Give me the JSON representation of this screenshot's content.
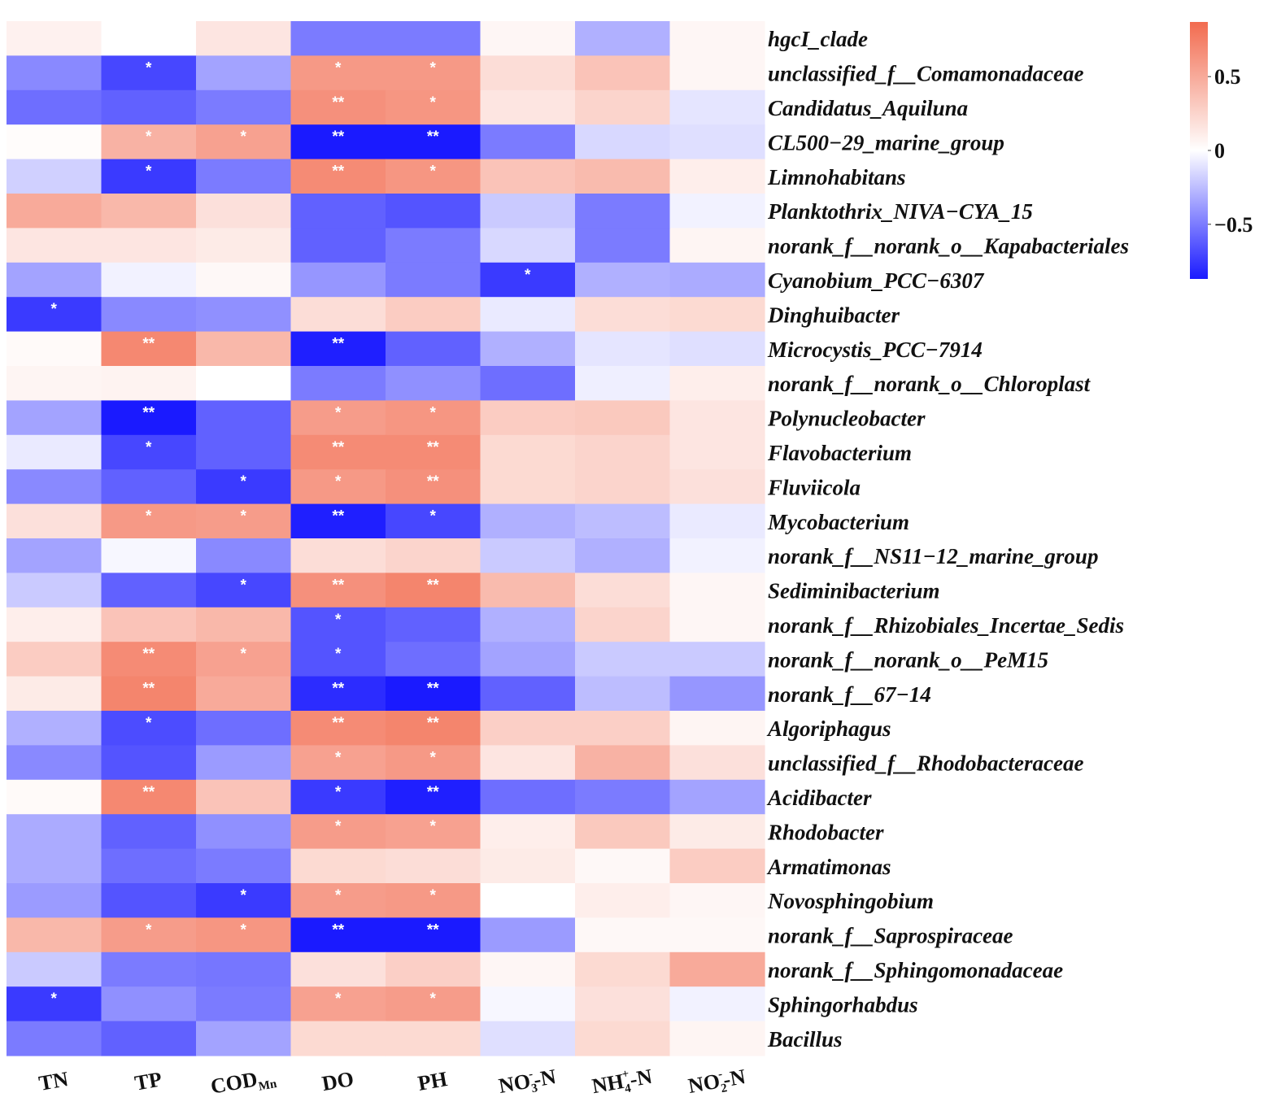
{
  "chart_data": {
    "type": "heatmap",
    "title": "",
    "columns": [
      {
        "main": "TN",
        "sub": "",
        "sup": "",
        "tail": ""
      },
      {
        "main": "TP",
        "sub": "",
        "sup": "",
        "tail": ""
      },
      {
        "main": "COD",
        "sub": "Mn",
        "sup": "",
        "tail": ""
      },
      {
        "main": "DO",
        "sub": "",
        "sup": "",
        "tail": ""
      },
      {
        "main": "PH",
        "sub": "",
        "sup": "",
        "tail": ""
      },
      {
        "main": "NO",
        "sub": "3",
        "sup": "-",
        "tail": "-N"
      },
      {
        "main": "NH",
        "sub": "4",
        "sup": "+",
        "tail": "-N"
      },
      {
        "main": "NO",
        "sub": "2",
        "sup": "-",
        "tail": "-N"
      }
    ],
    "rows": [
      "hgcI_clade",
      "unclassified_f__Comamonadaceae",
      "Candidatus_Aquiluna",
      "CL500−29_marine_group",
      "Limnohabitans",
      "Planktothrix_NIVA−CYA_15",
      "norank_f__norank_o__Kapabacteriales",
      "Cyanobium_PCC−6307",
      "Dinghuibacter",
      "Microcystis_PCC−7914",
      "norank_f__norank_o__Chloroplast",
      "Polynucleobacter",
      "Flavobacterium",
      "Fluviicola",
      "Mycobacterium",
      "norank_f__NS11−12_marine_group",
      "Sediminibacterium",
      "norank_f__Rhizobiales_Incertae_Sedis",
      "norank_f__norank_o__PeM15",
      "norank_f__67−14",
      "Algoriphagus",
      "unclassified_f__Rhodobacteraceae",
      "Acidibacter",
      "Rhodobacter",
      "Armatimonas",
      "Novosphingobium",
      "norank_f__Saprospiraceae",
      "norank_f__Sphingomonadaceae",
      "Sphingorhabdus",
      "Bacillus"
    ],
    "values": [
      [
        0.08,
        0.0,
        0.15,
        -0.5,
        -0.5,
        0.05,
        -0.3,
        0.05
      ],
      [
        -0.45,
        -0.7,
        -0.35,
        0.6,
        0.6,
        0.2,
        0.35,
        0.05
      ],
      [
        -0.55,
        -0.6,
        -0.5,
        0.65,
        0.62,
        0.15,
        0.25,
        -0.1
      ],
      [
        0.02,
        0.45,
        0.55,
        -0.95,
        -0.9,
        -0.5,
        -0.15,
        -0.12
      ],
      [
        -0.18,
        -0.75,
        -0.5,
        0.68,
        0.62,
        0.35,
        0.4,
        0.1
      ],
      [
        0.5,
        0.42,
        0.18,
        -0.6,
        -0.65,
        -0.2,
        -0.5,
        -0.05
      ],
      [
        0.15,
        0.15,
        0.12,
        -0.6,
        -0.5,
        -0.15,
        -0.5,
        0.06
      ],
      [
        -0.35,
        -0.05,
        0.04,
        -0.4,
        -0.5,
        -0.75,
        -0.3,
        -0.32
      ],
      [
        -0.75,
        -0.45,
        -0.42,
        0.2,
        0.3,
        -0.08,
        0.2,
        0.22
      ],
      [
        0.03,
        0.7,
        0.42,
        -0.85,
        -0.6,
        -0.3,
        -0.1,
        -0.12
      ],
      [
        0.06,
        0.07,
        0.0,
        -0.5,
        -0.42,
        -0.55,
        -0.06,
        0.1
      ],
      [
        -0.35,
        -0.92,
        -0.6,
        0.58,
        0.62,
        0.3,
        0.32,
        0.15
      ],
      [
        -0.08,
        -0.7,
        -0.6,
        0.68,
        0.68,
        0.22,
        0.25,
        0.15
      ],
      [
        -0.45,
        -0.6,
        -0.75,
        0.6,
        0.65,
        0.22,
        0.25,
        0.18
      ],
      [
        0.18,
        0.6,
        0.58,
        -0.85,
        -0.7,
        -0.3,
        -0.25,
        -0.08
      ],
      [
        -0.35,
        -0.03,
        -0.45,
        0.2,
        0.25,
        -0.2,
        -0.3,
        -0.05
      ],
      [
        -0.2,
        -0.6,
        -0.7,
        0.65,
        0.72,
        0.4,
        0.2,
        0.05
      ],
      [
        0.1,
        0.35,
        0.42,
        -0.65,
        -0.6,
        -0.3,
        0.25,
        0.05
      ],
      [
        0.3,
        0.68,
        0.55,
        -0.65,
        -0.55,
        -0.35,
        -0.2,
        -0.2
      ],
      [
        0.12,
        0.72,
        0.5,
        -0.8,
        -0.88,
        -0.6,
        -0.25,
        -0.4
      ],
      [
        -0.3,
        -0.68,
        -0.55,
        0.68,
        0.72,
        0.28,
        0.28,
        0.06
      ],
      [
        -0.45,
        -0.65,
        -0.38,
        0.55,
        0.6,
        0.15,
        0.45,
        0.18
      ],
      [
        0.03,
        0.7,
        0.35,
        -0.75,
        -0.85,
        -0.55,
        -0.5,
        -0.35
      ],
      [
        -0.32,
        -0.6,
        -0.42,
        0.58,
        0.55,
        0.1,
        0.32,
        0.12
      ],
      [
        -0.32,
        -0.55,
        -0.5,
        0.22,
        0.2,
        0.12,
        0.04,
        0.3
      ],
      [
        -0.38,
        -0.65,
        -0.75,
        0.58,
        0.6,
        0.0,
        0.1,
        0.05
      ],
      [
        0.42,
        0.58,
        0.62,
        -0.95,
        -0.92,
        -0.38,
        0.04,
        0.04
      ],
      [
        -0.2,
        -0.5,
        -0.52,
        0.18,
        0.28,
        0.05,
        0.22,
        0.5
      ],
      [
        -0.75,
        -0.42,
        -0.5,
        0.55,
        0.58,
        -0.03,
        0.18,
        -0.05
      ],
      [
        -0.5,
        -0.6,
        -0.35,
        0.22,
        0.22,
        -0.12,
        0.22,
        0.06
      ]
    ],
    "significance": [
      [
        "",
        "",
        "",
        "",
        "",
        "",
        "",
        ""
      ],
      [
        "",
        "*",
        "",
        "*",
        "*",
        "",
        "",
        ""
      ],
      [
        "",
        "",
        "",
        "**",
        "*",
        "",
        "",
        ""
      ],
      [
        "",
        "*",
        "*",
        "**",
        "**",
        "",
        "",
        ""
      ],
      [
        "",
        "*",
        "",
        "**",
        "*",
        "",
        "",
        ""
      ],
      [
        "",
        "",
        "",
        "",
        "",
        "",
        "",
        ""
      ],
      [
        "",
        "",
        "",
        "",
        "",
        "",
        "",
        ""
      ],
      [
        "",
        "",
        "",
        "",
        "",
        "*",
        "",
        ""
      ],
      [
        "*",
        "",
        "",
        "",
        "",
        "",
        "",
        ""
      ],
      [
        "",
        "**",
        "",
        "**",
        "",
        "",
        "",
        ""
      ],
      [
        "",
        "",
        "",
        "",
        "",
        "",
        "",
        ""
      ],
      [
        "",
        "**",
        "",
        "*",
        "*",
        "",
        "",
        ""
      ],
      [
        "",
        "*",
        "",
        "**",
        "**",
        "",
        "",
        ""
      ],
      [
        "",
        "",
        "*",
        "*",
        "**",
        "",
        "",
        ""
      ],
      [
        "",
        "*",
        "*",
        "**",
        "*",
        "",
        "",
        ""
      ],
      [
        "",
        "",
        "",
        "",
        "",
        "",
        "",
        ""
      ],
      [
        "",
        "",
        "*",
        "**",
        "**",
        "",
        "",
        ""
      ],
      [
        "",
        "",
        "",
        "*",
        "",
        "",
        "",
        ""
      ],
      [
        "",
        "**",
        "*",
        "*",
        "",
        "",
        "",
        ""
      ],
      [
        "",
        "**",
        "",
        "**",
        "**",
        "",
        "",
        ""
      ],
      [
        "",
        "*",
        "",
        "**",
        "**",
        "",
        "",
        ""
      ],
      [
        "",
        "",
        "",
        "*",
        "*",
        "",
        "",
        ""
      ],
      [
        "",
        "**",
        "",
        "*",
        "**",
        "",
        "",
        ""
      ],
      [
        "",
        "",
        "",
        "*",
        "*",
        "",
        "",
        ""
      ],
      [
        "",
        "",
        "",
        "",
        "",
        "",
        "",
        ""
      ],
      [
        "",
        "",
        "*",
        "*",
        "*",
        "",
        "",
        ""
      ],
      [
        "",
        "*",
        "*",
        "**",
        "**",
        "",
        "",
        ""
      ],
      [
        "",
        "",
        "",
        "",
        "",
        "",
        "",
        ""
      ],
      [
        "*",
        "",
        "",
        "*",
        "*",
        "",
        "",
        ""
      ],
      [
        "",
        "",
        "",
        "",
        "",
        "",
        "",
        ""
      ]
    ],
    "colorbar": {
      "min": -0.87,
      "max": 0.87,
      "ticks": [
        0.5,
        0,
        -0.5
      ],
      "tick_labels": [
        "0.5",
        "0",
        "−0.5"
      ],
      "low_color": "#1a1aff",
      "mid_color": "#ffffff",
      "high_color": "#f26b4f"
    }
  }
}
